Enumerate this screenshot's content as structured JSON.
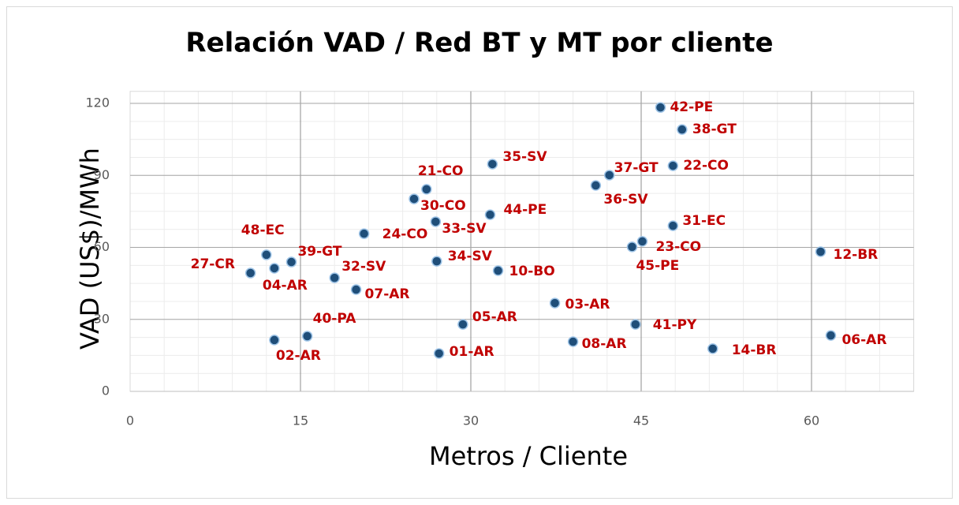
{
  "chart_data": {
    "type": "scatter",
    "title": "Relación VAD / Red BT y MT por cliente",
    "x_label": "Metros / Cliente",
    "y_label": "VAD (US$)/MWh",
    "xlim": [
      0,
      69
    ],
    "xticks": [
      0,
      15,
      30,
      45,
      60
    ],
    "ylim": [
      0,
      125
    ],
    "yticks": [
      0,
      30,
      60,
      90,
      120
    ],
    "grid": true,
    "series": [
      {
        "color": "#1f4e79",
        "labels": [
          "42-PE",
          "38-GT",
          "22-CO",
          "37-GT",
          "36-SV",
          "35-SV",
          "21-CO",
          "30-CO",
          "44-PE",
          "33-SV",
          "24-CO",
          "31-EC",
          "23-CO",
          "45-PE",
          "12-BR",
          "48-EC",
          "39-GT",
          "04-AR",
          "27-CR",
          "32-SV",
          "07-AR",
          "34-SV",
          "10-BO",
          "03-AR",
          "05-AR",
          "41-PY",
          "08-AR",
          "01-AR",
          "14-BR",
          "06-AR",
          "40-PA",
          "02-AR"
        ],
        "x": [
          46.7,
          48.6,
          47.8,
          42.2,
          41.0,
          31.9,
          26.1,
          25.0,
          31.7,
          26.9,
          20.6,
          47.8,
          45.1,
          44.2,
          60.8,
          12.0,
          14.2,
          12.7,
          10.6,
          18.0,
          19.9,
          27.0,
          32.4,
          37.4,
          29.3,
          44.5,
          39.0,
          27.2,
          51.3,
          61.7,
          15.6,
          12.7
        ],
        "values": [
          118.3,
          109.1,
          94.0,
          90.1,
          85.8,
          94.7,
          84.2,
          80.2,
          73.6,
          70.7,
          65.7,
          69.0,
          62.5,
          60.2,
          58.2,
          56.9,
          53.9,
          51.3,
          49.3,
          47.3,
          42.4,
          54.2,
          50.3,
          36.8,
          27.9,
          27.9,
          20.7,
          15.8,
          17.8,
          23.3,
          23.0,
          21.4
        ]
      }
    ]
  }
}
